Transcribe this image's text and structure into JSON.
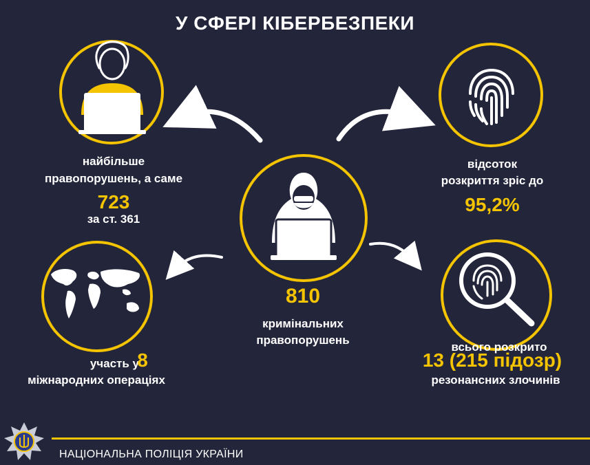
{
  "title": "У СФЕРІ КІБЕРБЕЗПЕКИ",
  "colors": {
    "background": "#23253a",
    "accent": "#f5c400",
    "text": "#ffffff"
  },
  "center": {
    "icon": "hacker-laptop-icon",
    "number": "810",
    "label_line1": "кримінальних",
    "label_line2": "правопорушень"
  },
  "top_left": {
    "icon": "person-laptop-icon",
    "label_line1": "найбільше",
    "label_line2": "правопорушень, а саме",
    "number": "723",
    "label_line3": "за ст. 361"
  },
  "top_right": {
    "icon": "fingerprint-icon",
    "label_line1": "відсоток",
    "label_line2": "розкриття зріс до",
    "number": "95,2%"
  },
  "bottom_left": {
    "icon": "world-map-icon",
    "label_line1": "участь у",
    "number": "8",
    "label_line2": "міжнародних операціях"
  },
  "bottom_right": {
    "icon": "magnifier-fingerprint-icon",
    "label_line1": "всього розкрито",
    "number": "13 (215 підозр)",
    "label_line2": "резонансних злочинів"
  },
  "footer": {
    "emblem": "police-emblem-icon",
    "text": "НАЦІОНАЛЬНА ПОЛІЦІЯ УКРАЇНИ"
  }
}
